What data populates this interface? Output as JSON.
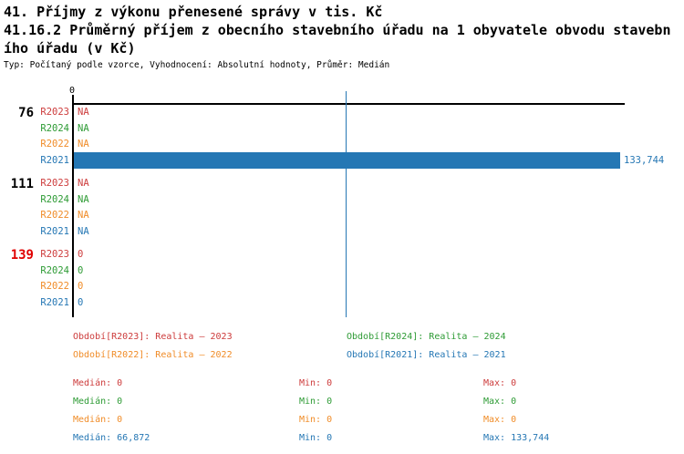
{
  "header": {
    "title_line1": "41. Příjmy z výkonu přenesené správy v tis. Kč",
    "title_line2": "41.16.2 Průměrný příjem z obecního stavebního úřadu na 1 obyvatele obvodu stavebn",
    "title_line3": "ího úřadu (v Kč)",
    "meta": "Typ: Počítaný podle vzorce, Vyhodnocení: Absolutní hodnoty, Průměr: Medián"
  },
  "colors": {
    "red": "#cd3c3c",
    "green": "#2e9b35",
    "orange": "#f08c28",
    "blue": "#2577b4",
    "bright_red": "#e00000",
    "black": "#000000",
    "axis": "#000000",
    "median_line": "#2577b4"
  },
  "chart_data": {
    "type": "bar",
    "orientation": "horizontal",
    "axis_tick_label": "0",
    "x_axis": {
      "min": 0,
      "tick_labels": [
        "0"
      ]
    },
    "max_value": 133744,
    "median_line_value": 66872,
    "series_colors": {
      "R2023": "red",
      "R2024": "green",
      "R2022": "orange",
      "R2021": "blue"
    },
    "groups": [
      {
        "label": "76",
        "label_color": "black",
        "bars": [
          {
            "series": "R2023",
            "value": null,
            "display": "NA"
          },
          {
            "series": "R2024",
            "value": null,
            "display": "NA"
          },
          {
            "series": "R2022",
            "value": null,
            "display": "NA"
          },
          {
            "series": "R2021",
            "value": 133744,
            "display": "133,744"
          }
        ]
      },
      {
        "label": "111",
        "label_color": "black",
        "bars": [
          {
            "series": "R2023",
            "value": null,
            "display": "NA"
          },
          {
            "series": "R2024",
            "value": null,
            "display": "NA"
          },
          {
            "series": "R2022",
            "value": null,
            "display": "NA"
          },
          {
            "series": "R2021",
            "value": null,
            "display": "NA"
          }
        ]
      },
      {
        "label": "139",
        "label_color": "bright_red",
        "bars": [
          {
            "series": "R2023",
            "value": 0,
            "display": "0"
          },
          {
            "series": "R2024",
            "value": 0,
            "display": "0"
          },
          {
            "series": "R2022",
            "value": 0,
            "display": "0"
          },
          {
            "series": "R2021",
            "value": 0,
            "display": "0"
          }
        ]
      }
    ]
  },
  "legend": {
    "entries": [
      {
        "key": "Období[R2023]",
        "value": "Realita – 2023",
        "color": "red",
        "col": 0,
        "row": 0
      },
      {
        "key": "Období[R2024]",
        "value": "Realita – 2024",
        "color": "green",
        "col": 1,
        "row": 0
      },
      {
        "key": "Období[R2022]",
        "value": "Realita – 2022",
        "color": "orange",
        "col": 0,
        "row": 1
      },
      {
        "key": "Období[R2021]",
        "value": "Realita – 2021",
        "color": "blue",
        "col": 1,
        "row": 1
      }
    ]
  },
  "stats": {
    "median_label": "Medián",
    "min_label": "Min",
    "max_label": "Max",
    "rows": [
      {
        "series": "R2023",
        "color": "red",
        "median": "0",
        "min": "0",
        "max": "0"
      },
      {
        "series": "R2024",
        "color": "green",
        "median": "0",
        "min": "0",
        "max": "0"
      },
      {
        "series": "R2022",
        "color": "orange",
        "median": "0",
        "min": "0",
        "max": "0"
      },
      {
        "series": "R2021",
        "color": "blue",
        "median": "66,872",
        "min": "0",
        "max": "133,744"
      }
    ]
  }
}
